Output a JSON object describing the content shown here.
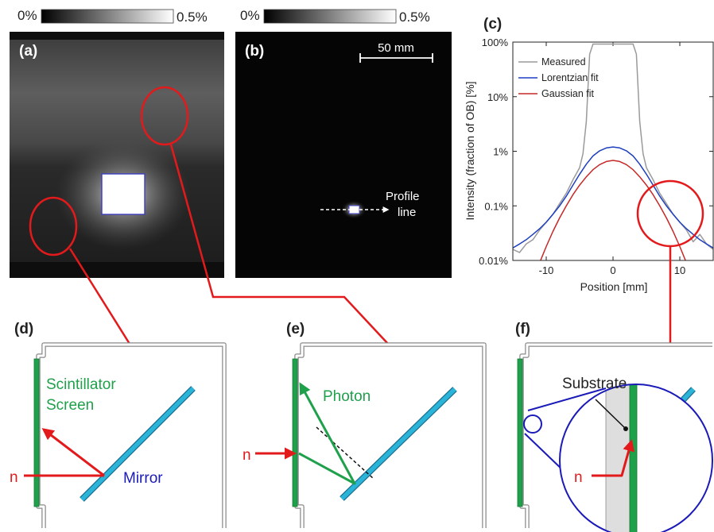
{
  "colors": {
    "red": "#e31a1c",
    "green": "#1fa04b",
    "blue_text": "#1a1ab8",
    "mirror": "#29b4d8",
    "panel_stroke": "#8a8a8a",
    "gray_curve": "#9a9a9a",
    "lorentz": "#1f3fbf",
    "gauss": "#c62828"
  },
  "panels": {
    "a": {
      "label": "(a)",
      "scale_min": "0%",
      "scale_max": "0.5%"
    },
    "b": {
      "label": "(b)",
      "scale_min": "0%",
      "scale_max": "0.5%",
      "scalebar": "50 mm",
      "profile_line_1": "Profile",
      "profile_line_2": "line"
    },
    "c": {
      "label": "(c)"
    },
    "d": {
      "label": "(d)",
      "screen_label_1": "Scintillator",
      "screen_label_2": "Screen",
      "neutron": "n",
      "mirror_label": "Mirror"
    },
    "e": {
      "label": "(e)",
      "photon_label": "Photon",
      "neutron": "n"
    },
    "f": {
      "label": "(f)",
      "substrate_label": "Substrate",
      "neutron": "n"
    }
  },
  "chart_data": {
    "type": "line",
    "xlabel": "Position [mm]",
    "ylabel": "Intensity (fraction of OB) [%]",
    "xlim": [
      -15,
      15
    ],
    "ylim": [
      0.01,
      100
    ],
    "yscale": "log",
    "x_ticks": [
      -10,
      0,
      10
    ],
    "y_ticks": [
      "0.01%",
      "0.1%",
      "1%",
      "10%",
      "100%"
    ],
    "legend_position": "top-left",
    "series": [
      {
        "name": "Measured",
        "color": "#9a9a9a",
        "x": [
          -15,
          -14,
          -13,
          -12,
          -11,
          -10,
          -9,
          -8,
          -7,
          -6,
          -5,
          -4.5,
          -4,
          -3.5,
          -3,
          -2,
          0,
          2,
          3,
          3.5,
          4,
          4.5,
          5,
          6,
          7,
          8,
          9,
          10,
          11,
          12,
          13,
          14,
          15
        ],
        "y": [
          0.016,
          0.014,
          0.02,
          0.024,
          0.036,
          0.05,
          0.07,
          0.11,
          0.17,
          0.3,
          0.5,
          0.9,
          3.5,
          60,
          92,
          92,
          92,
          92,
          92,
          60,
          3.5,
          0.9,
          0.5,
          0.3,
          0.17,
          0.11,
          0.07,
          0.05,
          0.036,
          0.022,
          0.03,
          0.02,
          0.016
        ]
      },
      {
        "name": "Lorentzian fit",
        "color": "#1f3fbf",
        "x": [
          -15,
          -14,
          -13,
          -12,
          -11,
          -10,
          -9,
          -8,
          -7,
          -6,
          -5,
          -4,
          -3,
          -2,
          -1,
          0,
          1,
          2,
          3,
          4,
          5,
          6,
          7,
          8,
          9,
          10,
          11,
          12,
          13,
          14,
          15
        ],
        "y": [
          0.017,
          0.02,
          0.024,
          0.03,
          0.038,
          0.05,
          0.07,
          0.1,
          0.15,
          0.24,
          0.38,
          0.58,
          0.82,
          1.02,
          1.15,
          1.2,
          1.15,
          1.02,
          0.82,
          0.58,
          0.38,
          0.24,
          0.15,
          0.1,
          0.07,
          0.05,
          0.038,
          0.03,
          0.024,
          0.02,
          0.017
        ]
      },
      {
        "name": "Gaussian fit",
        "color": "#c62828",
        "x": [
          -11,
          -10,
          -9,
          -8,
          -7,
          -6,
          -5,
          -4,
          -3,
          -2,
          -1,
          0,
          1,
          2,
          3,
          4,
          5,
          6,
          7,
          8,
          9,
          10,
          11
        ],
        "y": [
          0.009,
          0.018,
          0.034,
          0.06,
          0.1,
          0.16,
          0.24,
          0.34,
          0.46,
          0.57,
          0.65,
          0.68,
          0.65,
          0.57,
          0.46,
          0.34,
          0.24,
          0.16,
          0.1,
          0.06,
          0.034,
          0.018,
          0.009
        ]
      }
    ]
  }
}
